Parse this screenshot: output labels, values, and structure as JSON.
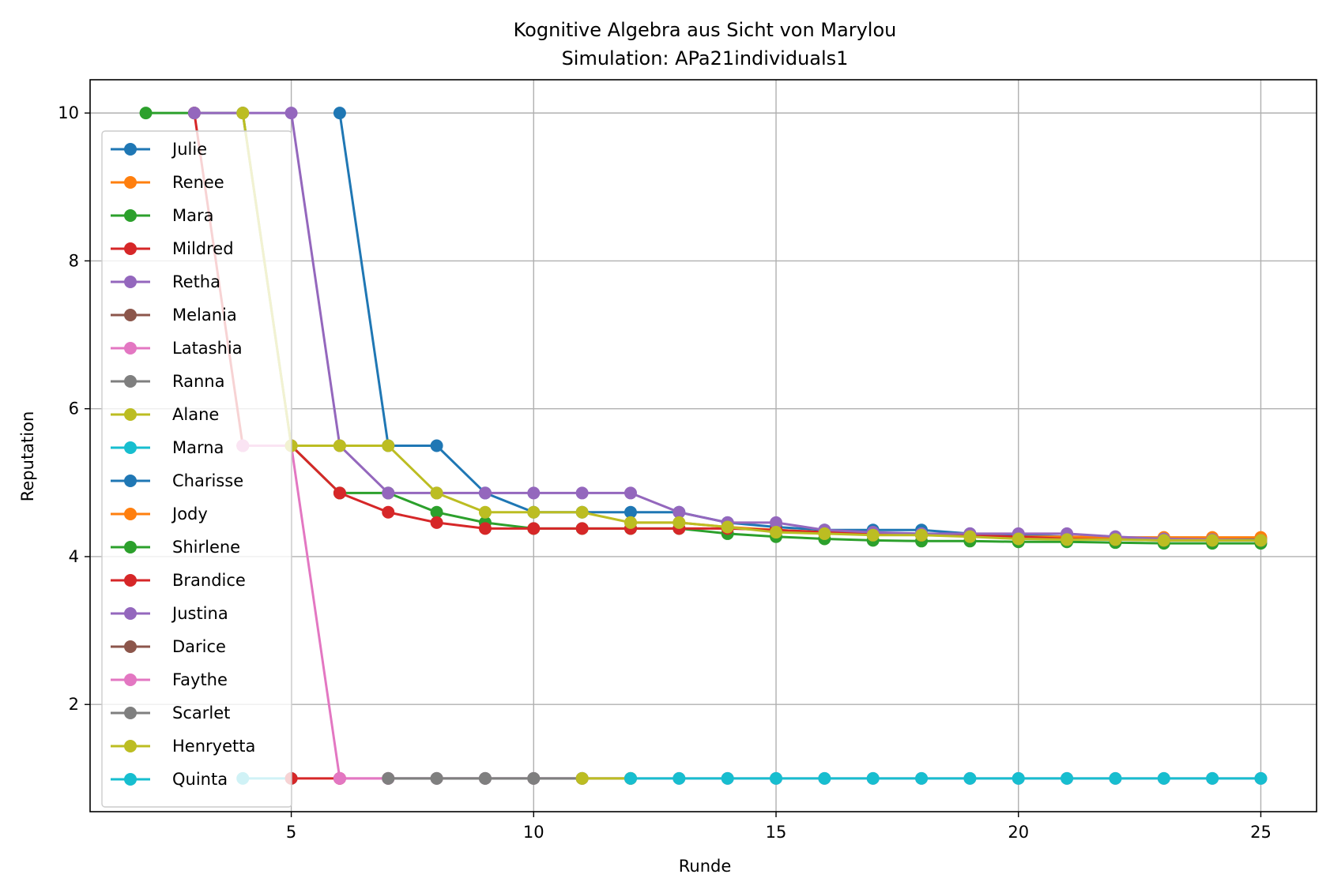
{
  "chart_data": {
    "type": "line",
    "title": "Kognitive Algebra aus Sicht von Marylou",
    "subtitle": "Simulation: APa21individuals1",
    "xlabel": "Runde",
    "ylabel": "Reputation",
    "xlim": [
      0.85,
      26.15
    ],
    "ylim": [
      0.55,
      10.45
    ],
    "xticks": [
      5,
      10,
      15,
      20,
      25
    ],
    "yticks": [
      2,
      4,
      6,
      8,
      10
    ],
    "grid": true,
    "legend_position": "upper-left",
    "series": [
      {
        "name": "Julie",
        "color": "#1f77b4",
        "x": [
          6,
          7,
          8,
          9,
          10,
          11,
          12,
          13,
          14,
          15,
          16,
          17,
          18,
          19,
          20,
          21,
          22,
          23,
          24,
          25
        ],
        "y": [
          10,
          5.5,
          5.5,
          4.86,
          4.6,
          4.6,
          4.6,
          4.6,
          4.46,
          4.4,
          4.36,
          4.36,
          4.36,
          4.31,
          4.29,
          4.27,
          4.26,
          4.25,
          4.25,
          4.24
        ]
      },
      {
        "name": "Renee",
        "color": "#ff7f0e",
        "x": [
          12,
          13,
          14,
          15,
          16,
          17,
          18,
          19,
          20,
          21,
          22,
          23,
          24,
          25
        ],
        "y": [
          4.46,
          4.46,
          4.4,
          4.36,
          4.33,
          4.31,
          4.29,
          4.28,
          4.27,
          4.27,
          4.26,
          4.26,
          4.26,
          4.26
        ]
      },
      {
        "name": "Mara",
        "color": "#2ca02c",
        "x": [
          2,
          3,
          4,
          5,
          6,
          7,
          8,
          9,
          10,
          11,
          12,
          13,
          14,
          15,
          16,
          17,
          18,
          19,
          20,
          21,
          22,
          23,
          24,
          25
        ],
        "y": [
          10,
          10,
          10,
          5.5,
          4.86,
          4.86,
          4.6,
          4.46,
          4.38,
          4.38,
          4.38,
          4.38,
          4.31,
          4.27,
          4.24,
          4.22,
          4.21,
          4.21,
          4.2,
          4.2,
          4.19,
          4.18,
          4.18,
          4.18
        ]
      },
      {
        "name": "Mildred",
        "color": "#d62728",
        "x": [
          3,
          4,
          5,
          6,
          7,
          8,
          9,
          10,
          11,
          12,
          13,
          14,
          15,
          16,
          17,
          18,
          19,
          20,
          21,
          22,
          23,
          24,
          25
        ],
        "y": [
          10,
          5.5,
          5.5,
          4.86,
          4.6,
          4.46,
          4.38,
          4.38,
          4.38,
          4.38,
          4.38,
          4.38,
          4.36,
          4.33,
          4.31,
          4.29,
          4.28,
          4.27,
          4.24,
          4.23,
          4.22,
          4.22,
          4.22
        ]
      },
      {
        "name": "Retha",
        "color": "#9467bd",
        "x": [
          3,
          4,
          5,
          6,
          7,
          8,
          9,
          10,
          11,
          12,
          13,
          14,
          15,
          16,
          17,
          18,
          19,
          20,
          21,
          22,
          23,
          24,
          25
        ],
        "y": [
          10,
          10,
          10,
          5.5,
          4.86,
          4.86,
          4.86,
          4.86,
          4.86,
          4.86,
          4.6,
          4.46,
          4.46,
          4.36,
          4.33,
          4.31,
          4.31,
          4.31,
          4.31,
          4.27,
          4.24,
          4.23,
          4.22
        ]
      },
      {
        "name": "Melania",
        "color": "#8c564b",
        "x": [],
        "y": []
      },
      {
        "name": "Latashia",
        "color": "#e377c2",
        "x": [
          4,
          5,
          6,
          7,
          8,
          9,
          10,
          11,
          12,
          13,
          14,
          15,
          16,
          17,
          18,
          19,
          20,
          21,
          22,
          23,
          24,
          25
        ],
        "y": [
          5.5,
          5.5,
          1,
          1,
          1,
          1,
          1,
          1,
          1,
          1,
          1,
          1,
          1,
          1,
          1,
          1,
          1,
          1,
          1,
          1,
          1,
          1
        ]
      },
      {
        "name": "Ranna",
        "color": "#7f7f7f",
        "x": [
          7,
          8,
          9,
          10,
          11,
          12
        ],
        "y": [
          1,
          1,
          1,
          1,
          1,
          1
        ]
      },
      {
        "name": "Alane",
        "color": "#bcbd22",
        "x": [
          4,
          5,
          6,
          7,
          8,
          9,
          10,
          11,
          12,
          13,
          14,
          15,
          16,
          17,
          18,
          19,
          20,
          21,
          22,
          23,
          24,
          25
        ],
        "y": [
          10,
          5.5,
          5.5,
          5.5,
          4.86,
          4.6,
          4.6,
          4.6,
          4.46,
          4.46,
          4.4,
          4.33,
          4.31,
          4.29,
          4.29,
          4.27,
          4.24,
          4.23,
          4.23,
          4.22,
          4.22,
          4.22
        ]
      },
      {
        "name": "Marna",
        "color": "#17becf",
        "x": [
          4,
          5
        ],
        "y": [
          1,
          1
        ]
      },
      {
        "name": "Charisse",
        "color": "#1f77b4",
        "x": [],
        "y": []
      },
      {
        "name": "Jody",
        "color": "#ff7f0e",
        "x": [],
        "y": []
      },
      {
        "name": "Shirlene",
        "color": "#2ca02c",
        "x": [],
        "y": []
      },
      {
        "name": "Brandice",
        "color": "#d62728",
        "x": [
          5,
          6
        ],
        "y": [
          1,
          1
        ]
      },
      {
        "name": "Justina",
        "color": "#9467bd",
        "x": [],
        "y": []
      },
      {
        "name": "Darice",
        "color": "#8c564b",
        "x": [],
        "y": []
      },
      {
        "name": "Faythe",
        "color": "#e377c2",
        "x": [
          6,
          7
        ],
        "y": [
          1,
          1
        ]
      },
      {
        "name": "Scarlet",
        "color": "#7f7f7f",
        "x": [
          7,
          8,
          9,
          10,
          11
        ],
        "y": [
          1,
          1,
          1,
          1,
          1
        ]
      },
      {
        "name": "Henryetta",
        "color": "#bcbd22",
        "x": [
          11,
          12
        ],
        "y": [
          1,
          1
        ]
      },
      {
        "name": "Quinta",
        "color": "#17becf",
        "x": [
          12,
          13,
          14,
          15,
          16,
          17,
          18,
          19,
          20,
          21,
          22,
          23,
          24,
          25
        ],
        "y": [
          1,
          1,
          1,
          1,
          1,
          1,
          1,
          1,
          1,
          1,
          1,
          1,
          1,
          1
        ]
      }
    ]
  }
}
